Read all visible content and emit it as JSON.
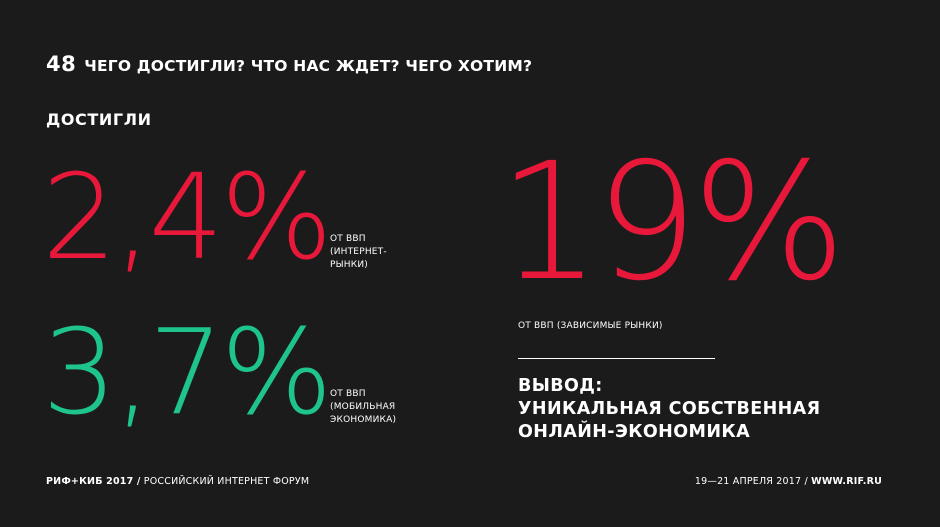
{
  "header": {
    "slide_number": "48",
    "title": "ЧЕГО ДОСТИГЛИ? ЧТО НАС ЖДЕТ? ЧЕГО ХОТИМ?"
  },
  "section": {
    "label": "ДОСТИГЛИ"
  },
  "stats": {
    "internet_markets": {
      "value": "2,4%",
      "caption_line1": "ОТ ВВП",
      "caption_line2": "(ИНТЕРНЕТ-",
      "caption_line3": "РЫНКИ)"
    },
    "mobile_economy": {
      "value": "3,7%",
      "caption_line1": "ОТ ВВП",
      "caption_line2": "(МОБИЛЬНАЯ",
      "caption_line3": "ЭКОНОМИКА)"
    },
    "dependent_markets": {
      "value": "19%",
      "caption": "ОТ ВВП (ЗАВИСИМЫЕ РЫНКИ)"
    }
  },
  "conclusion": {
    "line1": "ВЫВОД:",
    "line2": "УНИКАЛЬНАЯ СОБСТВЕННАЯ",
    "line3": "ОНЛАЙН-ЭКОНОМИКА"
  },
  "footer": {
    "left_bold": "РИФ+КИБ 2017 /",
    "left_text": " РОССИЙСКИЙ ИНТЕРНЕТ ФОРУМ",
    "right_text": "19—21 АПРЕЛЯ 2017 / ",
    "right_bold": "WWW.RIF.RU"
  },
  "colors": {
    "background": "#1b1b1b",
    "accent_red": "#e8183a",
    "accent_green": "#1ec48c",
    "text": "#ffffff"
  }
}
